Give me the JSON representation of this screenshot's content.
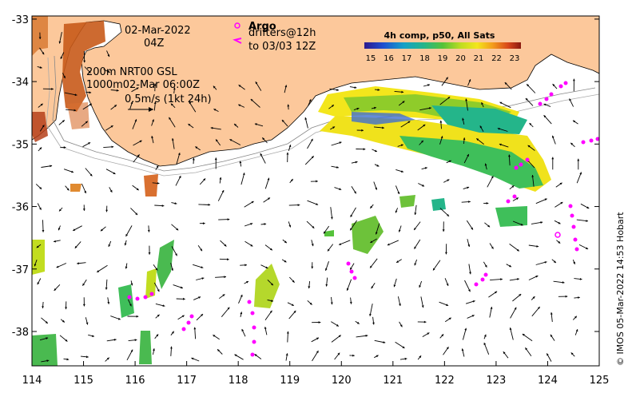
{
  "map": {
    "date_line1": "02-Mar-2022",
    "date_line2": "04Z",
    "isobath_line1": "200m  NRT00 GSL",
    "isobath_line2": "1000m02-Mar 06:00Z",
    "vector_scale": "0.5m/s (1kt 24h)",
    "argo_label": "Argo",
    "drifters_line1": "drifters@12h",
    "drifters_line2": "to 03/03 12Z",
    "colorbar_title": "4h comp, p50, All Sats",
    "colorbar_ticks": [
      "15",
      "16",
      "17",
      "18",
      "19",
      "20",
      "21",
      "22",
      "23"
    ],
    "copyright": "© IMOS 05-Mar-2022 14:53 Hobart",
    "lon_ticks": [
      "114",
      "115",
      "116",
      "117",
      "118",
      "119",
      "120",
      "121",
      "122",
      "123",
      "124",
      "125"
    ],
    "lat_ticks": [
      "-33",
      "-34",
      "-35",
      "-36",
      "-37",
      "-38"
    ],
    "lon_range": [
      114,
      125
    ],
    "lat_range": [
      -38.55,
      -32.95
    ],
    "colors": {
      "land": "#fcc89b",
      "argo": "#ff00ff",
      "drifter": "#ff00ff"
    }
  }
}
